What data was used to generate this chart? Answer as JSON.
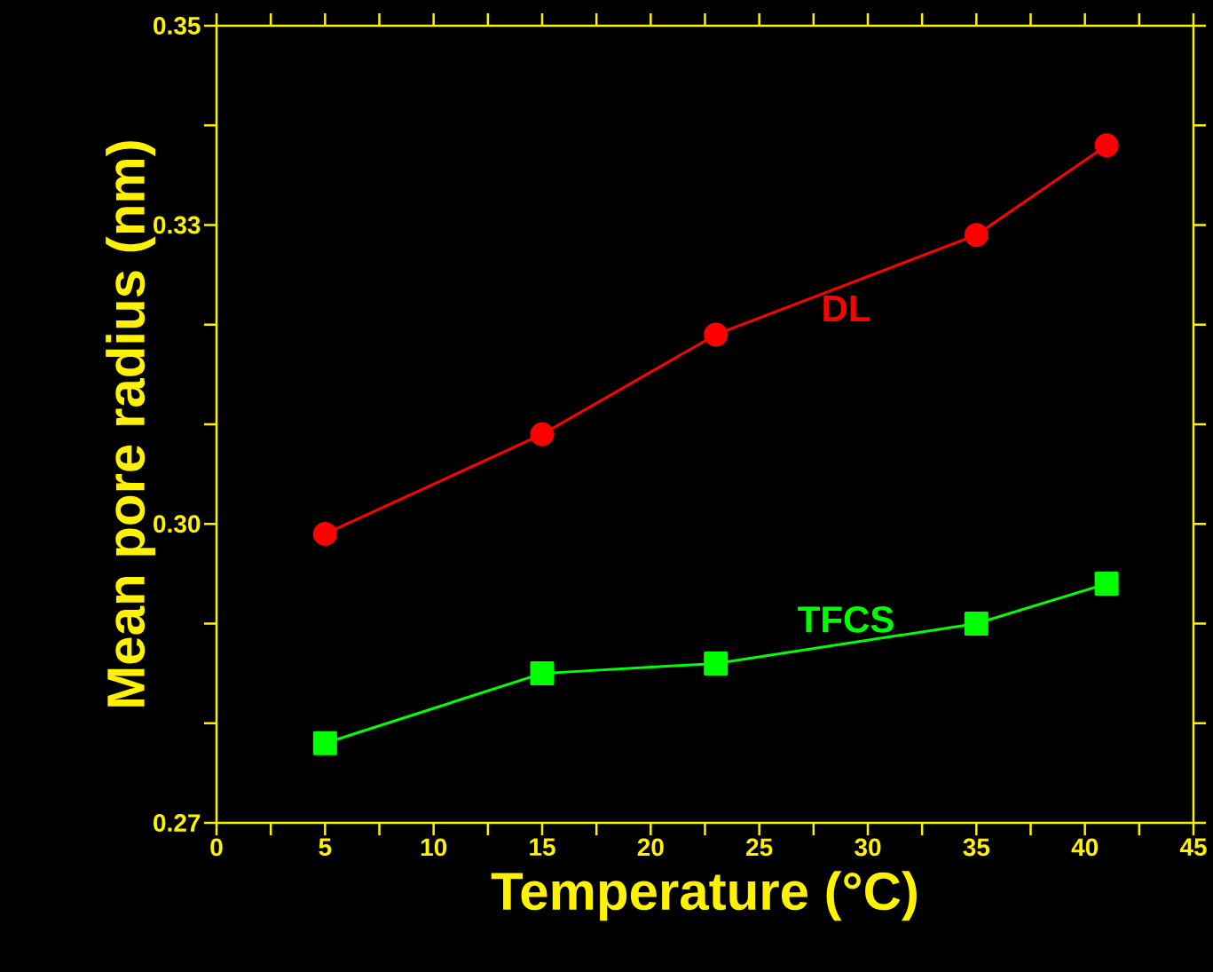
{
  "chart_data": {
    "type": "line",
    "xlabel": "Temperature (°C)",
    "ylabel": "Mean pore radius (nm)",
    "x": [
      5,
      15,
      23,
      35,
      41
    ],
    "series": [
      {
        "name": "DL",
        "color": "#ff0000",
        "marker": "circle",
        "values": [
          0.299,
          0.309,
          0.319,
          0.329,
          0.338
        ]
      },
      {
        "name": "TFCS",
        "color": "#00ff00",
        "marker": "square",
        "values": [
          0.278,
          0.285,
          0.286,
          0.29,
          0.294
        ]
      }
    ],
    "xlim": [
      0,
      45
    ],
    "xticks": [
      0,
      {
        "value": 2.5,
        "label": null
      },
      5,
      {
        "value": 7.5,
        "label": null
      },
      10,
      {
        "value": 12.5,
        "label": null
      },
      15,
      {
        "value": 17.5,
        "label": null
      },
      20,
      {
        "value": 22.5,
        "label": null
      },
      25,
      {
        "value": 27.5,
        "label": null
      },
      30,
      {
        "value": 32.5,
        "label": null
      },
      35,
      {
        "value": 37.5,
        "label": null
      },
      40,
      {
        "value": 42.5,
        "label": null
      },
      45
    ],
    "ylim": [
      0.27,
      0.35
    ],
    "yticks": [
      {
        "value": 0.27,
        "label": "0.27"
      },
      {
        "value": 0.28,
        "label": null
      },
      {
        "value": 0.29,
        "label": null
      },
      {
        "value": 0.3,
        "label": "0.30"
      },
      {
        "value": 0.31,
        "label": null
      },
      {
        "value": 0.32,
        "label": null
      },
      {
        "value": 0.33,
        "label": "0.33"
      },
      {
        "value": 0.34,
        "label": null
      },
      {
        "value": 0.35,
        "label": "0.35"
      }
    ],
    "grid": false,
    "legend": false
  }
}
